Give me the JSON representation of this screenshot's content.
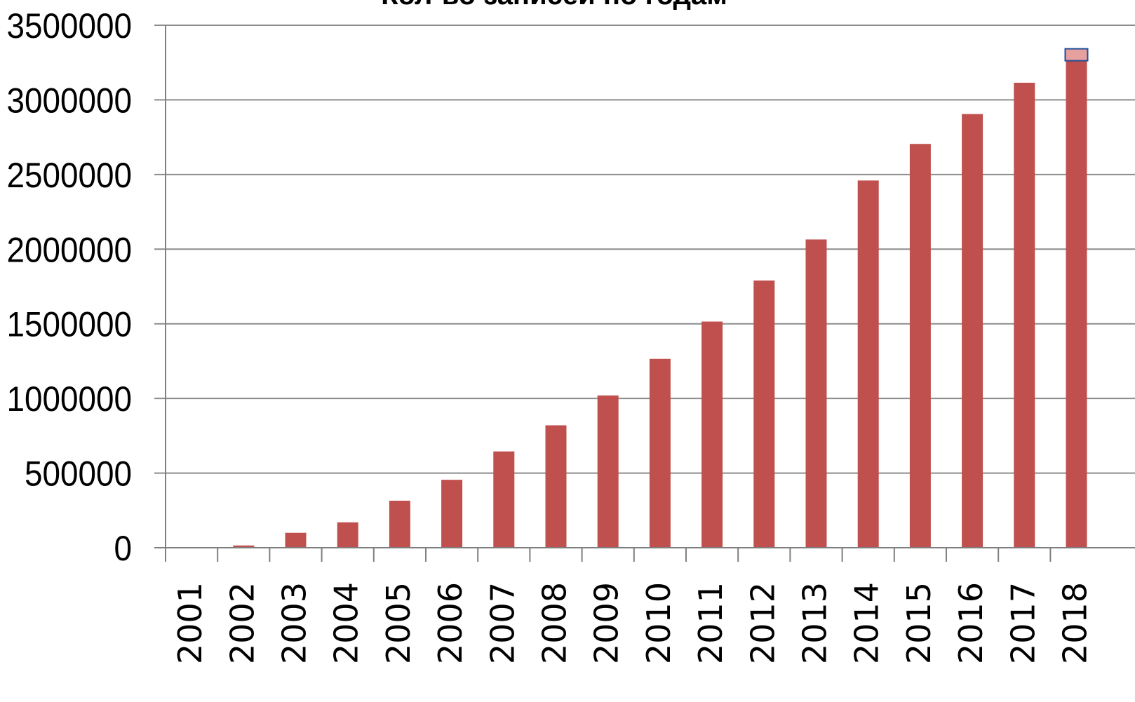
{
  "chart_data": {
    "type": "bar",
    "title": "Кол-во записей по годам",
    "xlabel": "",
    "ylabel": "",
    "categories": [
      "2001",
      "2002",
      "2003",
      "2004",
      "2005",
      "2006",
      "2007",
      "2008",
      "2009",
      "2010",
      "2011",
      "2012",
      "2013",
      "2014",
      "2015",
      "2016",
      "2017",
      "2018"
    ],
    "values": [
      3000,
      15000,
      100000,
      170000,
      315000,
      455000,
      645000,
      820000,
      1020000,
      1265000,
      1515000,
      1790000,
      2065000,
      2460000,
      2705000,
      2905000,
      3115000,
      3300000
    ],
    "ylim": [
      0,
      3500000
    ],
    "yticks": [
      0,
      500000,
      1000000,
      1500000,
      2000000,
      2500000,
      3000000,
      3500000
    ],
    "ytick_labels": [
      "0",
      "500000",
      "1000000",
      "1500000",
      "2000000",
      "2500000",
      "3000000",
      "3500000"
    ],
    "grid": true,
    "legend": "none",
    "colors": {
      "bar": "#c0504d",
      "highlight_fill": "#e6a09e",
      "highlight_stroke": "#1f4e9a",
      "grid": "#8c8c8c",
      "axis": "#7f7f7f"
    },
    "highlighted_category": "2018"
  }
}
